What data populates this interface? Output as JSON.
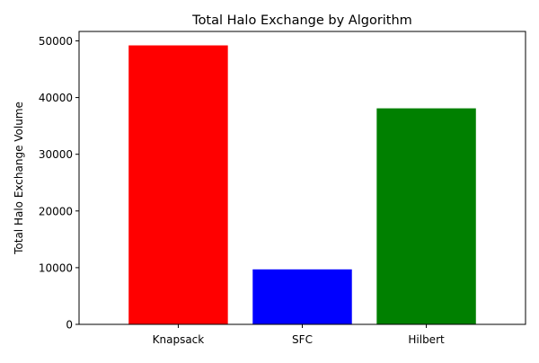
{
  "chart_data": {
    "type": "bar",
    "title": "Total Halo Exchange by Algorithm",
    "xlabel": "",
    "ylabel": "Total Halo Exchange Volume",
    "categories": [
      "Knapsack",
      "SFC",
      "Hilbert"
    ],
    "values": [
      49200,
      9700,
      38100
    ],
    "colors": [
      "#ff0000",
      "#0000ff",
      "#008000"
    ],
    "ylim": [
      0,
      51660
    ],
    "yticks": [
      0,
      10000,
      20000,
      30000,
      40000,
      50000
    ],
    "grid": false,
    "legend": "none"
  }
}
